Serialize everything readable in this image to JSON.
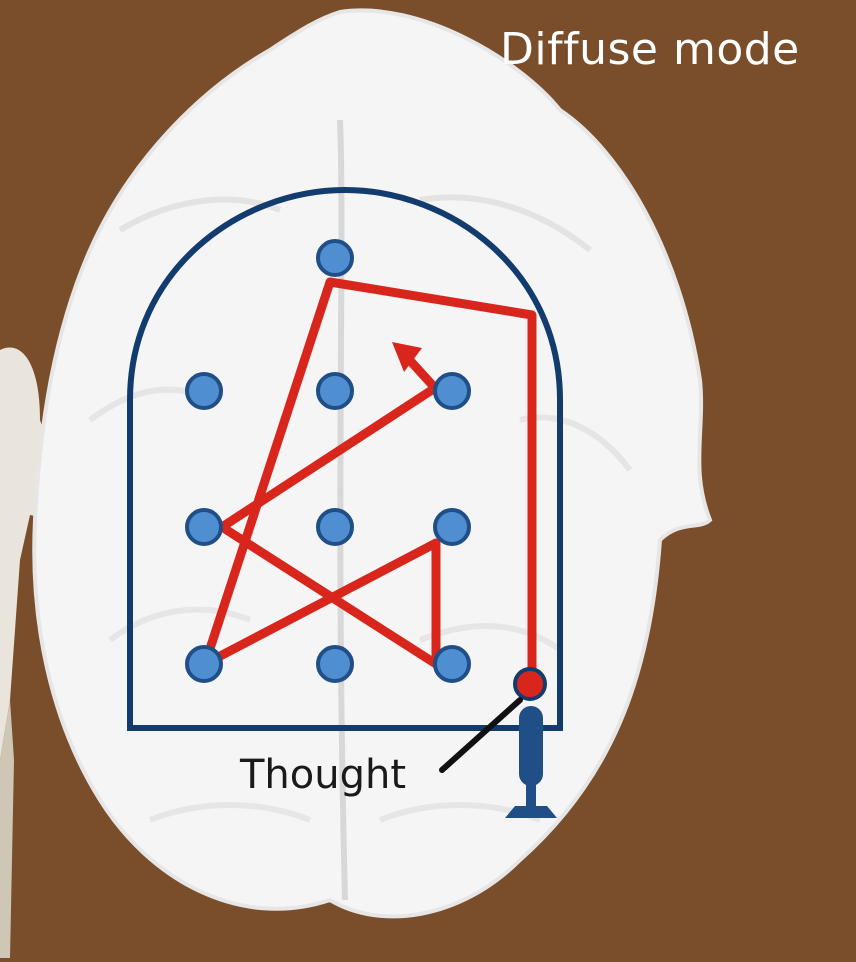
{
  "title": "Diffuse mode",
  "thought_label": "Thought",
  "colors": {
    "background": "#7a4e2a",
    "brain": "#f4f4f4",
    "frame": "#123c6e",
    "dot_fill": "#4f8fd1",
    "dot_stroke": "#1f4f86",
    "path": "#d9261c",
    "thought_dot": "#d9261c",
    "pinball_plunger": "#1f4f86"
  },
  "icons": {
    "brain": "brain-outline",
    "plunger": "pinball-plunger-icon",
    "arrow": "arrowhead-icon"
  }
}
